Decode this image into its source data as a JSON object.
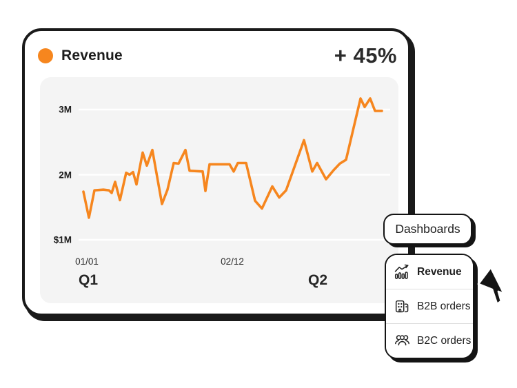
{
  "card": {
    "title": "Revenue",
    "delta": "+ 45%",
    "accent_color": "#F6861E",
    "border_color": "#1a1a1a"
  },
  "chart_data": {
    "type": "line",
    "title": "Revenue",
    "series_name": "Revenue",
    "unit": "USD millions",
    "color": "#F6861E",
    "background": "#f4f4f4",
    "grid": true,
    "gridline_color": "#ffffff",
    "ylim": [
      1,
      3.4
    ],
    "y_ticks": [
      {
        "label": "3M",
        "value": 3
      },
      {
        "label": "2M",
        "value": 2
      },
      {
        "label": "$1M",
        "value": 1
      }
    ],
    "x_ticks": [
      {
        "label": "01/01",
        "x": 68
      },
      {
        "label": "02/12",
        "x": 279
      }
    ],
    "quarter_labels": [
      {
        "label": "Q1",
        "x": 70
      },
      {
        "label": "Q2",
        "x": 403
      }
    ],
    "points": [
      [
        63,
        1.74
      ],
      [
        71,
        1.34
      ],
      [
        79,
        1.76
      ],
      [
        92,
        1.77
      ],
      [
        100,
        1.76
      ],
      [
        104,
        1.72
      ],
      [
        109,
        1.89
      ],
      [
        116,
        1.61
      ],
      [
        125,
        2.03
      ],
      [
        130,
        2.0
      ],
      [
        135,
        2.04
      ],
      [
        140,
        1.85
      ],
      [
        149,
        2.34
      ],
      [
        155,
        2.14
      ],
      [
        163,
        2.38
      ],
      [
        177,
        1.55
      ],
      [
        185,
        1.77
      ],
      [
        194,
        2.18
      ],
      [
        201,
        2.17
      ],
      [
        211,
        2.38
      ],
      [
        217,
        2.06
      ],
      [
        236,
        2.05
      ],
      [
        240,
        1.75
      ],
      [
        246,
        2.16
      ],
      [
        275,
        2.16
      ],
      [
        281,
        2.05
      ],
      [
        287,
        2.18
      ],
      [
        299,
        2.18
      ],
      [
        312,
        1.6
      ],
      [
        322,
        1.48
      ],
      [
        337,
        1.82
      ],
      [
        347,
        1.65
      ],
      [
        357,
        1.76
      ],
      [
        383,
        2.53
      ],
      [
        395,
        2.05
      ],
      [
        402,
        2.18
      ],
      [
        415,
        1.93
      ],
      [
        426,
        2.07
      ],
      [
        435,
        2.17
      ],
      [
        444,
        2.23
      ],
      [
        465,
        3.17
      ],
      [
        471,
        3.04
      ],
      [
        479,
        3.17
      ],
      [
        486,
        2.98
      ],
      [
        496,
        2.98
      ]
    ]
  },
  "dashboards_button": {
    "label": "Dashboards"
  },
  "menu": {
    "items": [
      {
        "label": "Revenue",
        "icon": "trend-chart-icon",
        "active": true
      },
      {
        "label": "B2B orders",
        "icon": "b2b-building-icon",
        "active": false
      },
      {
        "label": "B2C orders",
        "icon": "b2c-people-icon",
        "active": false
      }
    ]
  },
  "cursor": {
    "type": "arrow-pointer"
  }
}
